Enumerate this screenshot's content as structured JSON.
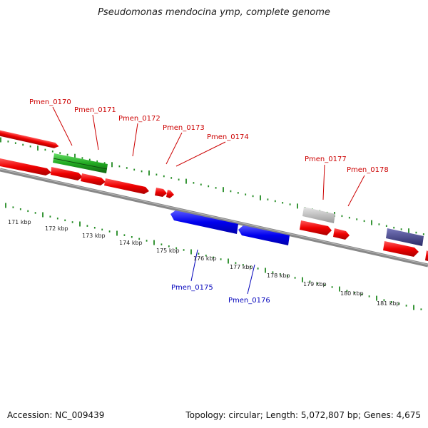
{
  "title": "Pseudomonas mendocina ymp, complete genome",
  "footer": {
    "accession": "Accession: NC_009439",
    "summary": "Topology: circular; Length: 5,072,807 bp; Genes: 4,675"
  },
  "kbp_labels": [
    "171 kbp",
    "172 kbp",
    "173 kbp",
    "174 kbp",
    "175 kbp",
    "176 kbp",
    "177 kbp",
    "178 kbp",
    "179 kbp",
    "180 kbp",
    "181 kbp"
  ],
  "genes_top": [
    "Pmen_0170",
    "Pmen_0171",
    "Pmen_0172",
    "Pmen_0173",
    "Pmen_0174",
    "Pmen_0177",
    "Pmen_0178"
  ],
  "genes_bottom": [
    "Pmen_0175",
    "Pmen_0176"
  ],
  "colors": {
    "forward": "#ff0000",
    "reverse": "#0000ff",
    "rna": "#33bb33",
    "pseudo": "#bbbbbb",
    "other": "#444488",
    "tick": "#228b22",
    "backbone": "#777777"
  }
}
